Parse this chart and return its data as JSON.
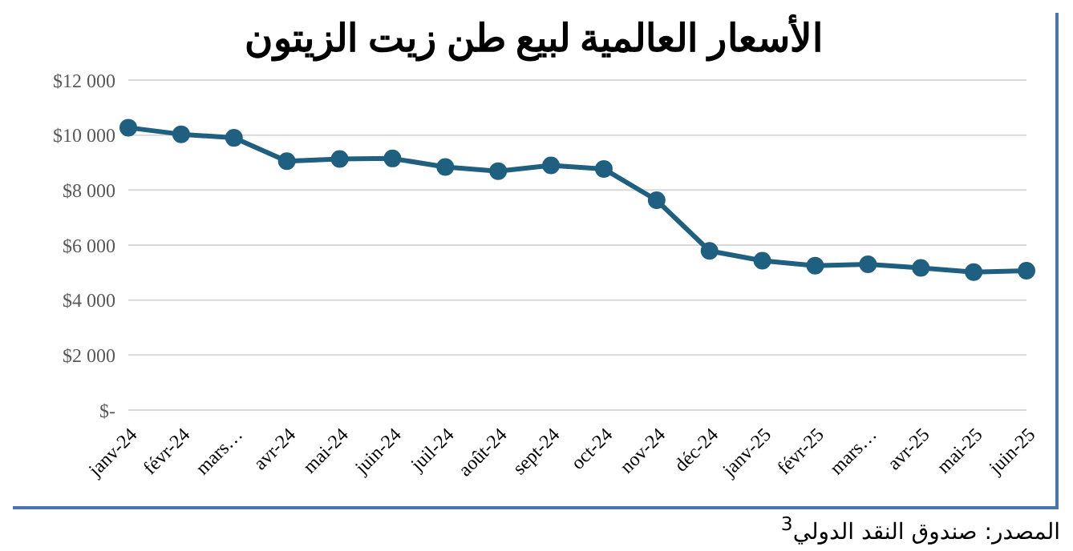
{
  "chart_data": {
    "type": "line",
    "title": "الأسعار العالمية لبيع طن زيت الزيتون",
    "categories": [
      "janv-24",
      "févr-24",
      "mars…",
      "avr-24",
      "mai-24",
      "juin-24",
      "juil-24",
      "août-24",
      "sept-24",
      "oct-24",
      "nov-24",
      "déc-24",
      "janv-25",
      "févr-25",
      "mars…",
      "avr-25",
      "mai-25",
      "juin-25"
    ],
    "series": [
      {
        "color": "#1f5f7f",
        "values": [
          10270,
          10030,
          9900,
          9050,
          9130,
          9150,
          8840,
          8690,
          8900,
          8770,
          7630,
          5790,
          5430,
          5250,
          5300,
          5170,
          5020,
          5070
        ]
      }
    ],
    "ylim": [
      0,
      12000
    ],
    "yticks": [
      {
        "value": 0,
        "label": "$-"
      },
      {
        "value": 2000,
        "label": "$2 000"
      },
      {
        "value": 4000,
        "label": "$4 000"
      },
      {
        "value": 6000,
        "label": "$6 000"
      },
      {
        "value": 8000,
        "label": "$8 000"
      },
      {
        "value": 10000,
        "label": "$10 000"
      },
      {
        "value": 12000,
        "label": "$12 000"
      }
    ],
    "grid": "y",
    "marker": "circle",
    "line_style": "solid",
    "legend": false,
    "annotations": [
      "المصدر: صندوق النقد الدولي$^{3}$"
    ]
  }
}
